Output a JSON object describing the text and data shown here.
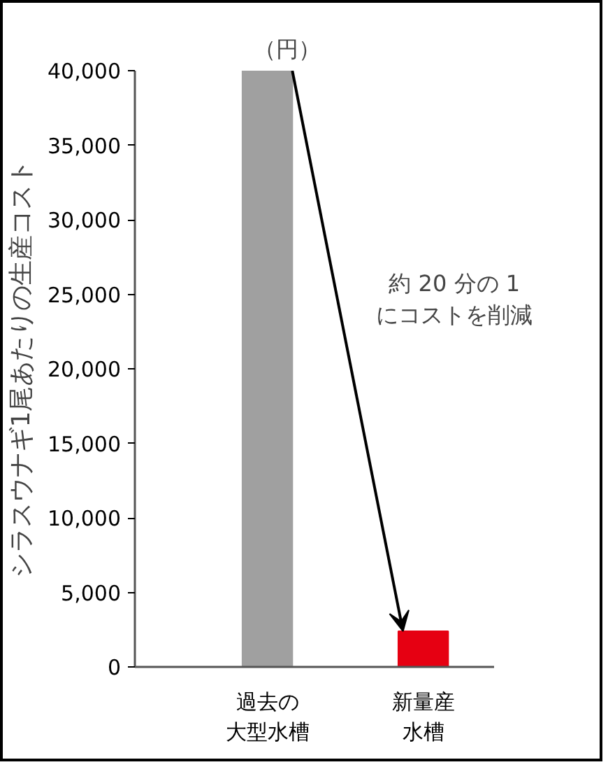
{
  "chart_data": {
    "type": "bar",
    "ylabel": "シラスウナギ1尾あたりの生産コスト",
    "categories": [
      "過去の大型水槽",
      "新量産水槽"
    ],
    "values": [
      40000,
      2400
    ],
    "colors": [
      "#a0a0a0",
      "#e60012"
    ],
    "ylim": [
      0,
      40000
    ],
    "yticks": [
      {
        "value": 0,
        "label": "0"
      },
      {
        "value": 5000,
        "label": "5,000"
      },
      {
        "value": 10000,
        "label": "10,000"
      },
      {
        "value": 15000,
        "label": "15,000"
      },
      {
        "value": 20000,
        "label": "20,000"
      },
      {
        "value": 25000,
        "label": "25,000"
      },
      {
        "value": 30000,
        "label": "30,000"
      },
      {
        "value": 35000,
        "label": "35,000"
      },
      {
        "value": 40000,
        "label": "40,000"
      }
    ],
    "grid": false,
    "annotations": [
      "（円）",
      "約 20 分の 1\nにコストを削減"
    ]
  }
}
